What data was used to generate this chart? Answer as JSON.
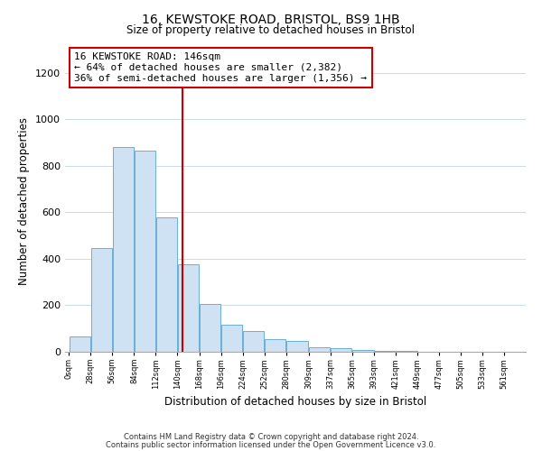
{
  "title1": "16, KEWSTOKE ROAD, BRISTOL, BS9 1HB",
  "title2": "Size of property relative to detached houses in Bristol",
  "xlabel": "Distribution of detached houses by size in Bristol",
  "ylabel": "Number of detached properties",
  "bar_left_edges": [
    0,
    28,
    56,
    84,
    112,
    140,
    168,
    196,
    224,
    252,
    280,
    309,
    337,
    365,
    393,
    421,
    449,
    477,
    505,
    533
  ],
  "bar_widths": [
    28,
    28,
    28,
    28,
    28,
    28,
    28,
    28,
    28,
    28,
    29,
    28,
    28,
    28,
    28,
    28,
    28,
    28,
    28,
    28
  ],
  "bar_heights": [
    65,
    445,
    880,
    865,
    580,
    375,
    205,
    115,
    90,
    55,
    45,
    20,
    15,
    8,
    5,
    3,
    0,
    0,
    0,
    0
  ],
  "bar_color": "#cfe2f3",
  "bar_edge_color": "#6baed6",
  "property_line_x": 146,
  "annotation_text_line1": "16 KEWSTOKE ROAD: 146sqm",
  "annotation_text_line2": "← 64% of detached houses are smaller (2,382)",
  "annotation_text_line3": "36% of semi-detached houses are larger (1,356) →",
  "ylim_max": 1300,
  "xlim_min": -5,
  "xlim_max": 589,
  "yticks": [
    0,
    200,
    400,
    600,
    800,
    1000,
    1200
  ],
  "tick_labels": [
    "0sqm",
    "28sqm",
    "56sqm",
    "84sqm",
    "112sqm",
    "140sqm",
    "168sqm",
    "196sqm",
    "224sqm",
    "252sqm",
    "280sqm",
    "309sqm",
    "337sqm",
    "365sqm",
    "393sqm",
    "421sqm",
    "449sqm",
    "477sqm",
    "505sqm",
    "533sqm",
    "561sqm"
  ],
  "tick_positions": [
    0,
    28,
    56,
    84,
    112,
    140,
    168,
    196,
    224,
    252,
    280,
    309,
    337,
    365,
    393,
    421,
    449,
    477,
    505,
    533,
    561
  ],
  "footer1": "Contains HM Land Registry data © Crown copyright and database right 2024.",
  "footer2": "Contains public sector information licensed under the Open Government Licence v3.0.",
  "line_color": "#cc0000",
  "bg_color": "#ffffff",
  "grid_color": "#ccd9e8"
}
